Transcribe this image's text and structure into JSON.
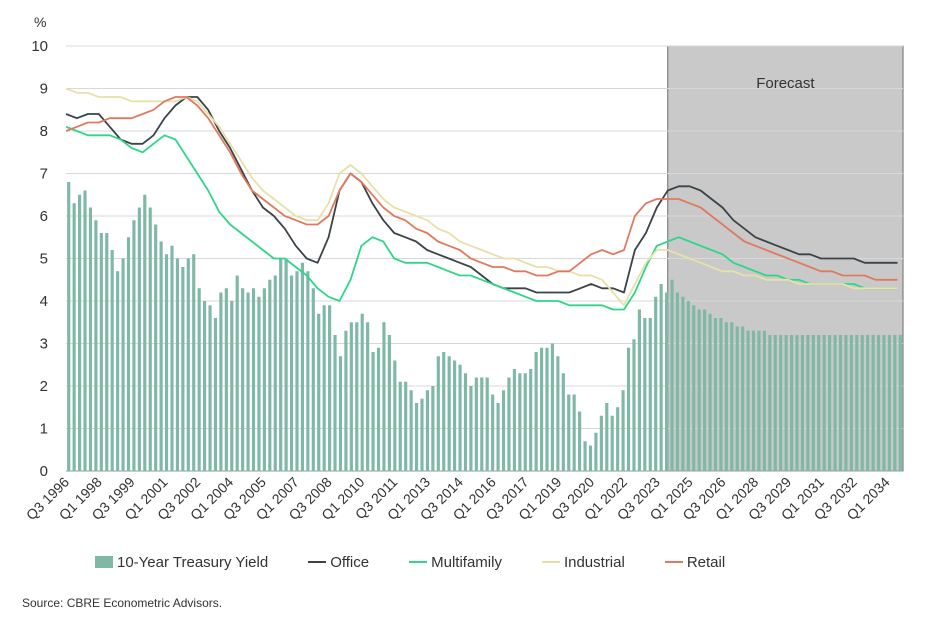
{
  "chart_data": {
    "type": "bar+line",
    "y_unit_label": "%",
    "ylim": [
      0,
      10
    ],
    "y_ticks": [
      "0",
      "1",
      "2",
      "3",
      "4",
      "5",
      "6",
      "7",
      "8",
      "9",
      "10"
    ],
    "x_tick_labels": [
      "Q3 1996",
      "Q1 1998",
      "Q3 1999",
      "Q1 2001",
      "Q3 2002",
      "Q1 2004",
      "Q3 2005",
      "Q1 2007",
      "Q3 2008",
      "Q1 2010",
      "Q3 2011",
      "Q1 2013",
      "Q3 2014",
      "Q1 2016",
      "Q3 2017",
      "Q1 2019",
      "Q3 2020",
      "Q1 2022",
      "Q3 2023",
      "Q1 2025",
      "Q3 2026",
      "Q1 2028",
      "Q3 2029",
      "Q1 2031",
      "Q3 2032",
      "Q1 2034"
    ],
    "forecast_label": "Forecast",
    "forecast_start": "Q1 2024",
    "legend_position": "bottom",
    "series": [
      {
        "name": "10-Year Treasury Yield",
        "kind": "bar",
        "color": "#7fb8a4",
        "values": [
          6.8,
          6.3,
          6.5,
          6.6,
          6.2,
          5.9,
          5.6,
          5.6,
          5.2,
          4.7,
          5.0,
          5.5,
          5.9,
          6.2,
          6.5,
          6.2,
          5.8,
          5.4,
          5.1,
          5.3,
          5.0,
          4.8,
          5.0,
          5.1,
          4.3,
          4.0,
          3.9,
          3.6,
          4.2,
          4.3,
          4.0,
          4.6,
          4.3,
          4.2,
          4.3,
          4.1,
          4.3,
          4.5,
          4.6,
          5.0,
          5.0,
          4.6,
          4.7,
          4.9,
          4.7,
          4.3,
          3.7,
          3.9,
          3.9,
          3.2,
          2.7,
          3.3,
          3.5,
          3.5,
          3.7,
          3.5,
          2.8,
          2.9,
          3.5,
          3.2,
          2.6,
          2.1,
          2.1,
          1.9,
          1.6,
          1.7,
          1.9,
          2.0,
          2.7,
          2.8,
          2.7,
          2.6,
          2.5,
          2.3,
          2.0,
          2.2,
          2.2,
          2.2,
          1.8,
          1.6,
          1.9,
          2.2,
          2.4,
          2.3,
          2.3,
          2.4,
          2.8,
          2.9,
          2.9,
          3.0,
          2.7,
          2.3,
          1.8,
          1.8,
          1.4,
          0.7,
          0.6,
          0.9,
          1.3,
          1.6,
          1.3,
          1.5,
          1.9,
          2.9,
          3.1,
          3.8,
          3.6,
          3.6,
          4.1,
          4.4,
          4.2,
          4.5,
          4.2,
          4.1,
          4.0,
          3.9,
          3.8,
          3.8,
          3.7,
          3.6,
          3.6,
          3.5,
          3.5,
          3.4,
          3.4,
          3.3,
          3.3,
          3.3,
          3.3,
          3.2,
          3.2,
          3.2,
          3.2,
          3.2,
          3.2,
          3.2,
          3.2,
          3.2,
          3.2,
          3.2,
          3.2,
          3.2,
          3.2,
          3.2,
          3.2,
          3.2,
          3.2,
          3.2,
          3.2,
          3.2,
          3.2,
          3.2,
          3.2,
          3.2
        ]
      },
      {
        "name": "Office",
        "kind": "line",
        "color": "#3b4348",
        "x": [
          1996.5,
          1997,
          1997.5,
          1998,
          1998.5,
          1999,
          1999.5,
          2000,
          2000.5,
          2001,
          2001.5,
          2002,
          2002.5,
          2003,
          2003.5,
          2004,
          2004.5,
          2005,
          2005.5,
          2006,
          2006.5,
          2007,
          2007.5,
          2008,
          2008.5,
          2009,
          2009.5,
          2010,
          2010.5,
          2011,
          2011.5,
          2012,
          2012.5,
          2013,
          2013.5,
          2014,
          2014.5,
          2015,
          2015.5,
          2016,
          2016.5,
          2017,
          2017.5,
          2018,
          2018.5,
          2019,
          2019.5,
          2020,
          2020.5,
          2021,
          2021.5,
          2022,
          2022.5,
          2023,
          2023.5,
          2024,
          2024.5,
          2025,
          2025.5,
          2026,
          2026.5,
          2027,
          2027.5,
          2028,
          2028.5,
          2029,
          2029.5,
          2030,
          2030.5,
          2031,
          2031.5,
          2032,
          2032.5,
          2033,
          2033.5,
          2034,
          2034.5
        ],
        "values": [
          8.4,
          8.3,
          8.4,
          8.4,
          8.1,
          7.8,
          7.7,
          7.7,
          7.9,
          8.3,
          8.6,
          8.8,
          8.8,
          8.5,
          8.0,
          7.6,
          7.1,
          6.6,
          6.2,
          6.0,
          5.7,
          5.3,
          5.0,
          4.9,
          5.5,
          6.6,
          7.0,
          6.8,
          6.3,
          5.9,
          5.6,
          5.5,
          5.4,
          5.2,
          5.1,
          5.0,
          4.9,
          4.8,
          4.6,
          4.4,
          4.3,
          4.3,
          4.3,
          4.2,
          4.2,
          4.2,
          4.2,
          4.3,
          4.4,
          4.3,
          4.3,
          4.2,
          5.2,
          5.6,
          6.2,
          6.6,
          6.7,
          6.7,
          6.6,
          6.4,
          6.2,
          5.9,
          5.7,
          5.5,
          5.4,
          5.3,
          5.2,
          5.1,
          5.1,
          5.0,
          5.0,
          5.0,
          5.0,
          4.9,
          4.9,
          4.9,
          4.9
        ]
      },
      {
        "name": "Multifamily",
        "kind": "line",
        "color": "#2fd68a",
        "x": [
          1996.5,
          1997,
          1997.5,
          1998,
          1998.5,
          1999,
          1999.5,
          2000,
          2000.5,
          2001,
          2001.5,
          2002,
          2002.5,
          2003,
          2003.5,
          2004,
          2004.5,
          2005,
          2005.5,
          2006,
          2006.5,
          2007,
          2007.5,
          2008,
          2008.5,
          2009,
          2009.5,
          2010,
          2010.5,
          2011,
          2011.5,
          2012,
          2012.5,
          2013,
          2013.5,
          2014,
          2014.5,
          2015,
          2015.5,
          2016,
          2016.5,
          2017,
          2017.5,
          2018,
          2018.5,
          2019,
          2019.5,
          2020,
          2020.5,
          2021,
          2021.5,
          2022,
          2022.5,
          2023,
          2023.5,
          2024,
          2024.5,
          2025,
          2025.5,
          2026,
          2026.5,
          2027,
          2027.5,
          2028,
          2028.5,
          2029,
          2029.5,
          2030,
          2030.5,
          2031,
          2031.5,
          2032,
          2032.5,
          2033,
          2033.5,
          2034,
          2034.5
        ],
        "values": [
          8.1,
          8.0,
          7.9,
          7.9,
          7.9,
          7.8,
          7.6,
          7.5,
          7.7,
          7.9,
          7.8,
          7.4,
          7.0,
          6.6,
          6.1,
          5.8,
          5.6,
          5.4,
          5.2,
          5.0,
          5.0,
          4.8,
          4.6,
          4.3,
          4.1,
          4.0,
          4.5,
          5.3,
          5.5,
          5.4,
          5.0,
          4.9,
          4.9,
          4.9,
          4.8,
          4.7,
          4.6,
          4.6,
          4.5,
          4.4,
          4.3,
          4.2,
          4.1,
          4.0,
          4.0,
          4.0,
          3.9,
          3.9,
          3.9,
          3.9,
          3.8,
          3.8,
          4.2,
          4.8,
          5.3,
          5.4,
          5.5,
          5.4,
          5.3,
          5.2,
          5.1,
          4.9,
          4.8,
          4.7,
          4.6,
          4.6,
          4.5,
          4.5,
          4.4,
          4.4,
          4.4,
          4.4,
          4.4,
          4.3,
          4.3,
          4.3,
          4.3
        ]
      },
      {
        "name": "Industrial",
        "kind": "line",
        "color": "#e6e1a8",
        "x": [
          1996.5,
          1997,
          1997.5,
          1998,
          1998.5,
          1999,
          1999.5,
          2000,
          2000.5,
          2001,
          2001.5,
          2002,
          2002.5,
          2003,
          2003.5,
          2004,
          2004.5,
          2005,
          2005.5,
          2006,
          2006.5,
          2007,
          2007.5,
          2008,
          2008.5,
          2009,
          2009.5,
          2010,
          2010.5,
          2011,
          2011.5,
          2012,
          2012.5,
          2013,
          2013.5,
          2014,
          2014.5,
          2015,
          2015.5,
          2016,
          2016.5,
          2017,
          2017.5,
          2018,
          2018.5,
          2019,
          2019.5,
          2020,
          2020.5,
          2021,
          2021.5,
          2022,
          2022.5,
          2023,
          2023.5,
          2024,
          2024.5,
          2025,
          2025.5,
          2026,
          2026.5,
          2027,
          2027.5,
          2028,
          2028.5,
          2029,
          2029.5,
          2030,
          2030.5,
          2031,
          2031.5,
          2032,
          2032.5,
          2033,
          2033.5,
          2034,
          2034.5
        ],
        "values": [
          9.0,
          8.9,
          8.9,
          8.8,
          8.8,
          8.8,
          8.7,
          8.7,
          8.7,
          8.7,
          8.7,
          8.8,
          8.7,
          8.4,
          8.1,
          7.7,
          7.3,
          6.9,
          6.6,
          6.4,
          6.2,
          6.0,
          5.9,
          5.9,
          6.3,
          7.0,
          7.2,
          7.0,
          6.7,
          6.4,
          6.2,
          6.1,
          6.0,
          5.9,
          5.7,
          5.6,
          5.4,
          5.3,
          5.2,
          5.1,
          5.0,
          5.0,
          4.9,
          4.8,
          4.8,
          4.7,
          4.7,
          4.6,
          4.6,
          4.5,
          4.2,
          3.9,
          4.4,
          4.9,
          5.2,
          5.2,
          5.1,
          5.0,
          4.9,
          4.8,
          4.7,
          4.7,
          4.6,
          4.6,
          4.5,
          4.5,
          4.5,
          4.4,
          4.4,
          4.4,
          4.4,
          4.4,
          4.3,
          4.3,
          4.3,
          4.3,
          4.3
        ]
      },
      {
        "name": "Retail",
        "kind": "line",
        "color": "#e07a5f",
        "x": [
          1996.5,
          1997,
          1997.5,
          1998,
          1998.5,
          1999,
          1999.5,
          2000,
          2000.5,
          2001,
          2001.5,
          2002,
          2002.5,
          2003,
          2003.5,
          2004,
          2004.5,
          2005,
          2005.5,
          2006,
          2006.5,
          2007,
          2007.5,
          2008,
          2008.5,
          2009,
          2009.5,
          2010,
          2010.5,
          2011,
          2011.5,
          2012,
          2012.5,
          2013,
          2013.5,
          2014,
          2014.5,
          2015,
          2015.5,
          2016,
          2016.5,
          2017,
          2017.5,
          2018,
          2018.5,
          2019,
          2019.5,
          2020,
          2020.5,
          2021,
          2021.5,
          2022,
          2022.5,
          2023,
          2023.5,
          2024,
          2024.5,
          2025,
          2025.5,
          2026,
          2026.5,
          2027,
          2027.5,
          2028,
          2028.5,
          2029,
          2029.5,
          2030,
          2030.5,
          2031,
          2031.5,
          2032,
          2032.5,
          2033,
          2033.5,
          2034,
          2034.5
        ],
        "values": [
          8.0,
          8.1,
          8.2,
          8.2,
          8.3,
          8.3,
          8.3,
          8.4,
          8.5,
          8.7,
          8.8,
          8.8,
          8.6,
          8.3,
          7.9,
          7.5,
          7.0,
          6.6,
          6.4,
          6.2,
          6.0,
          5.9,
          5.8,
          5.8,
          6.0,
          6.6,
          7.0,
          6.8,
          6.5,
          6.2,
          6.0,
          5.9,
          5.7,
          5.6,
          5.4,
          5.3,
          5.2,
          5.0,
          4.9,
          4.8,
          4.8,
          4.7,
          4.7,
          4.6,
          4.6,
          4.7,
          4.7,
          4.9,
          5.1,
          5.2,
          5.1,
          5.2,
          6.0,
          6.3,
          6.4,
          6.4,
          6.4,
          6.3,
          6.2,
          6.0,
          5.8,
          5.6,
          5.4,
          5.3,
          5.2,
          5.1,
          5.0,
          4.9,
          4.8,
          4.7,
          4.7,
          4.6,
          4.6,
          4.6,
          4.5,
          4.5,
          4.5
        ]
      }
    ]
  },
  "source": "Source: CBRE Econometric Advisors."
}
